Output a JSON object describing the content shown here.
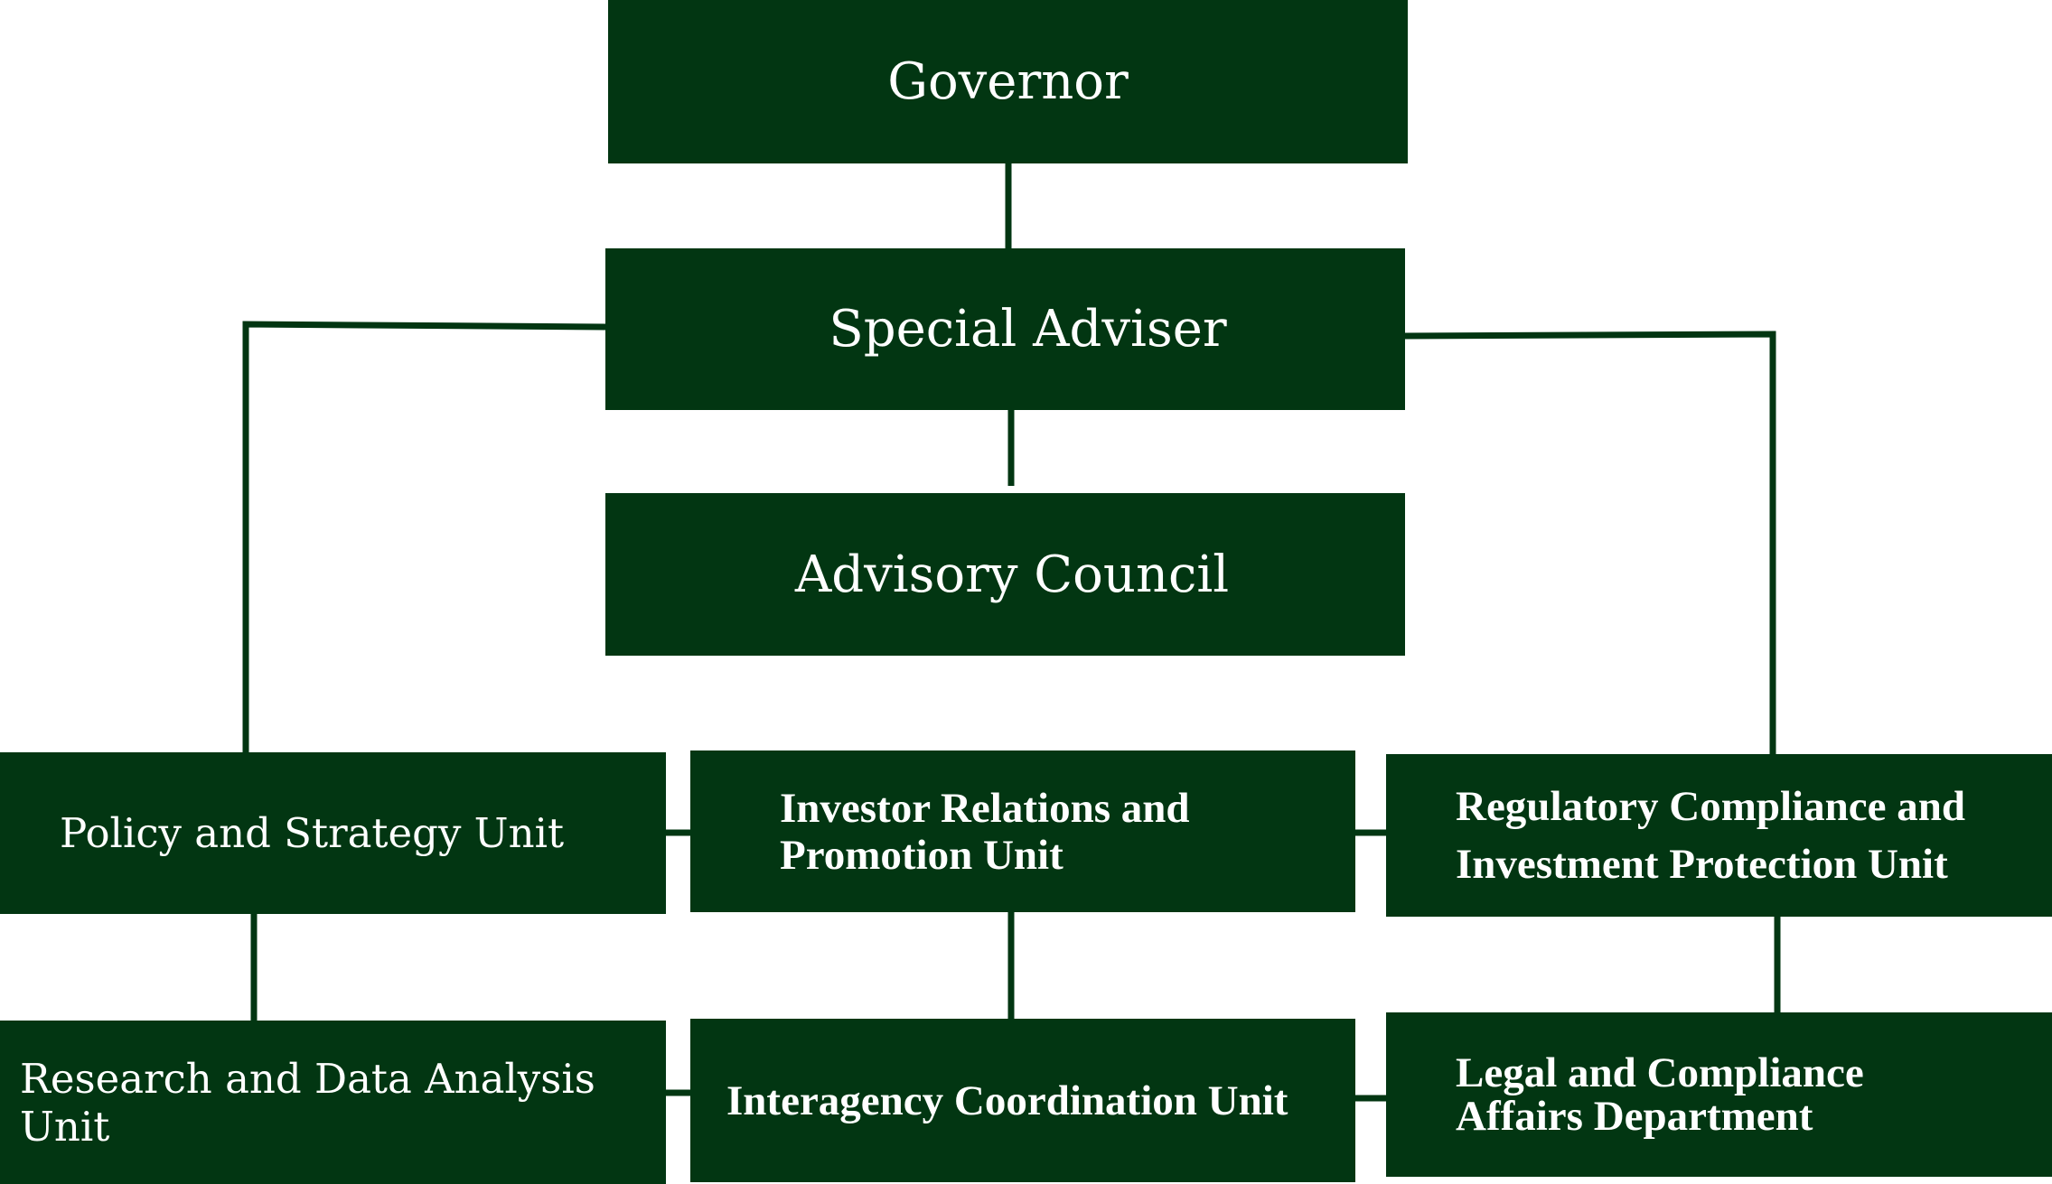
{
  "colors": {
    "box": "#023612",
    "line": "#023612",
    "text": "#ffffff"
  },
  "boxes": {
    "governor": "Governor",
    "special_adviser": "Special Adviser",
    "advisory_council": "Advisory Council",
    "policy_strategy": "Policy and Strategy Unit",
    "investor_relations": "Investor Relations and\nPromotion Unit",
    "regulatory_compliance": "Regulatory Compliance and\nInvestment Protection Unit",
    "research_data": "Research and Data Analysis Unit",
    "interagency": "Interagency Coordination Unit",
    "legal_compliance": "Legal and Compliance\nAffairs Department"
  }
}
